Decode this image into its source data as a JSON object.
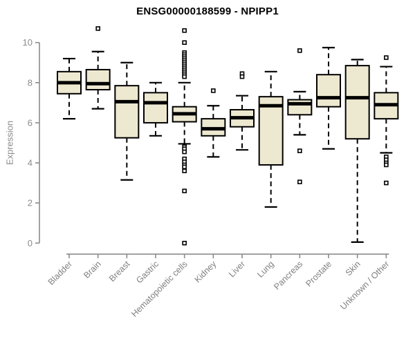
{
  "chart_data": {
    "type": "boxplot",
    "title": "ENSG00000188599 - NPIPP1",
    "ylabel": "Expression",
    "xlabel": "",
    "ylim": [
      0,
      10
    ],
    "yticks": [
      0,
      2,
      4,
      6,
      8,
      10
    ],
    "grid": false,
    "legend": "none",
    "categories": [
      "Bladder",
      "Brain",
      "Breast",
      "Gastric",
      "Hematopoietic cells",
      "Kidney",
      "Liver",
      "Lung",
      "Pancreas",
      "Prostate",
      "Skin",
      "Unknown / Other"
    ],
    "series": [
      {
        "name": "Bladder",
        "whisker_low": 6.2,
        "q1": 7.45,
        "median": 8.0,
        "q3": 8.55,
        "whisker_high": 9.2,
        "outliers": []
      },
      {
        "name": "Brain",
        "whisker_low": 6.7,
        "q1": 7.65,
        "median": 7.95,
        "q3": 8.65,
        "whisker_high": 9.55,
        "outliers": [
          10.7
        ]
      },
      {
        "name": "Breast",
        "whisker_low": 3.15,
        "q1": 5.25,
        "median": 7.05,
        "q3": 7.85,
        "whisker_high": 9.0,
        "outliers": []
      },
      {
        "name": "Gastric",
        "whisker_low": 5.35,
        "q1": 6.0,
        "median": 7.0,
        "q3": 7.5,
        "whisker_high": 8.0,
        "outliers": []
      },
      {
        "name": "Hematopoietic cells",
        "whisker_low": 4.95,
        "q1": 6.05,
        "median": 6.45,
        "q3": 6.8,
        "whisker_high": 8.0,
        "outliers": [
          10.6,
          10.0,
          9.5,
          9.4,
          9.3,
          9.2,
          9.1,
          9.0,
          8.9,
          8.8,
          8.7,
          8.6,
          8.5,
          8.4,
          8.3,
          4.8,
          4.7,
          4.55,
          4.2,
          4.05,
          3.9,
          3.8,
          3.6,
          2.6,
          0.0
        ]
      },
      {
        "name": "Kidney",
        "whisker_low": 4.3,
        "q1": 5.35,
        "median": 5.7,
        "q3": 6.2,
        "whisker_high": 6.85,
        "outliers": [
          7.6
        ]
      },
      {
        "name": "Liver",
        "whisker_low": 4.65,
        "q1": 5.8,
        "median": 6.25,
        "q3": 6.65,
        "whisker_high": 7.35,
        "outliers": [
          8.45,
          8.3
        ]
      },
      {
        "name": "Lung",
        "whisker_low": 1.8,
        "q1": 3.9,
        "median": 6.85,
        "q3": 7.3,
        "whisker_high": 8.55,
        "outliers": []
      },
      {
        "name": "Pancreas",
        "whisker_low": 5.4,
        "q1": 6.4,
        "median": 6.95,
        "q3": 7.15,
        "whisker_high": 7.55,
        "outliers": [
          9.6,
          4.6,
          3.05
        ]
      },
      {
        "name": "Prostate",
        "whisker_low": 4.7,
        "q1": 6.8,
        "median": 7.25,
        "q3": 8.4,
        "whisker_high": 9.75,
        "outliers": []
      },
      {
        "name": "Skin",
        "whisker_low": 0.05,
        "q1": 5.2,
        "median": 7.25,
        "q3": 8.85,
        "whisker_high": 9.15,
        "outliers": []
      },
      {
        "name": "Unknown / Other",
        "whisker_low": 4.5,
        "q1": 6.2,
        "median": 6.9,
        "q3": 7.5,
        "whisker_high": 8.8,
        "outliers": [
          9.25,
          4.3,
          4.15,
          4.0,
          3.9,
          3.0
        ]
      }
    ],
    "colors": {
      "box_fill": "#ede8d0",
      "box_stroke": "#000000",
      "median": "#000000",
      "whisker": "#000000",
      "outlier_stroke": "#000000",
      "outlier_fill": "#ffffff",
      "axis": "#8a8a8a",
      "tick_label": "#8a8a8a",
      "category_label": "#808080",
      "title": "#000000",
      "background": "#ffffff"
    }
  }
}
